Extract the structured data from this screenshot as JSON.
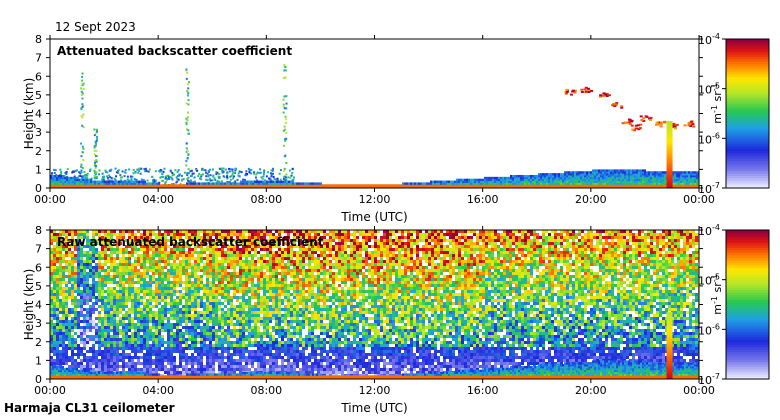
{
  "header": {
    "date": "12 Sept 2023"
  },
  "footer": {
    "station": "Harmaja CL31 ceilometer"
  },
  "chart_data": [
    {
      "type": "heatmap",
      "title": "Attenuated backscatter coefficient",
      "xlabel": "Time (UTC)",
      "ylabel": "Height (km)",
      "x_ticks": [
        "00:00",
        "04:00",
        "08:00",
        "12:00",
        "16:00",
        "20:00",
        "00:00"
      ],
      "x_range_hours": [
        0,
        24
      ],
      "y_ticks": [
        0,
        1,
        2,
        3,
        4,
        5,
        6,
        7,
        8
      ],
      "ylim": [
        0,
        8
      ],
      "colorbar": {
        "ticks": [
          "10",
          "10",
          "10",
          "10"
        ],
        "exponents": [
          "-7",
          "-6",
          "-5",
          "-4"
        ],
        "unit": "m",
        "unit_sup": "-1",
        "unit2": "sr",
        "unit2_sup": "-1"
      },
      "features": [
        {
          "kind": "boundary_layer",
          "from_hour": 0,
          "to_hour": 24,
          "heights_km": [
            0.7,
            0.5,
            0.3,
            0.4,
            0.2,
            0.2,
            0.3,
            0.3,
            0.4,
            0.3,
            0.2,
            0.2,
            0.2,
            0.2,
            0.3,
            0.4,
            0.5,
            0.6,
            0.7,
            0.8,
            0.9,
            0.9,
            0.9,
            0.8,
            0.8
          ]
        },
        {
          "kind": "cloud_layer",
          "description": "elevated cloud 20-24 UTC",
          "points": [
            [
              19.2,
              5.2
            ],
            [
              19.8,
              5.3
            ],
            [
              20.5,
              5.0
            ],
            [
              20.9,
              4.5
            ],
            [
              21.3,
              3.6
            ],
            [
              21.6,
              3.3
            ],
            [
              22.0,
              3.8
            ],
            [
              22.5,
              3.5
            ],
            [
              23.0,
              3.4
            ],
            [
              23.6,
              3.5
            ]
          ]
        },
        {
          "kind": "precipitation_column",
          "at_hour": 22.8,
          "top_km": 3.5
        }
      ]
    },
    {
      "type": "heatmap",
      "title": "Raw attenuated backscatter coefficient",
      "xlabel": "Time (UTC)",
      "ylabel": "Height (km)",
      "x_ticks": [
        "00:00",
        "04:00",
        "08:00",
        "12:00",
        "16:00",
        "20:00",
        "00:00"
      ],
      "x_range_hours": [
        0,
        24
      ],
      "y_ticks": [
        0,
        1,
        2,
        3,
        4,
        5,
        6,
        7,
        8
      ],
      "ylim": [
        0,
        8
      ],
      "colorbar": {
        "ticks": [
          "10",
          "10",
          "10",
          "10"
        ],
        "exponents": [
          "-7",
          "-6",
          "-5",
          "-4"
        ],
        "unit": "m",
        "unit_sup": "-1",
        "unit2": "sr",
        "unit2_sup": "-1"
      },
      "features": [
        {
          "kind": "noise_field",
          "description": "background noise increasing with height"
        },
        {
          "kind": "boundary_layer",
          "from_hour": 0,
          "to_hour": 24,
          "heights_km": [
            0.7,
            0.5,
            0.3,
            0.4,
            0.2,
            0.2,
            0.3,
            0.3,
            0.4,
            0.3,
            0.2,
            0.2,
            0.2,
            0.2,
            0.3,
            0.4,
            0.5,
            0.6,
            0.7,
            0.8,
            0.9,
            0.9,
            0.9,
            0.8,
            0.8
          ]
        },
        {
          "kind": "precipitation_column",
          "at_hour": 22.8,
          "top_km": 3.5
        }
      ]
    }
  ]
}
